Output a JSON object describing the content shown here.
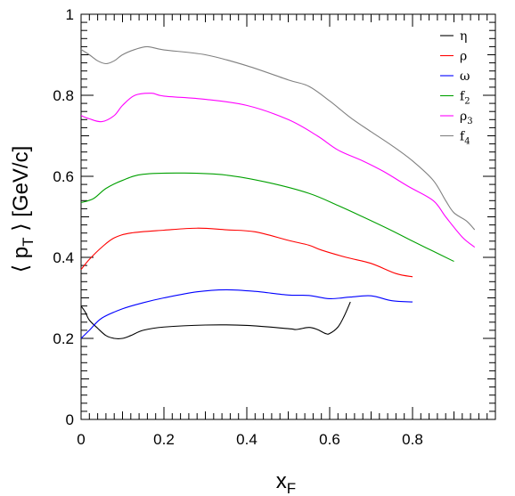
{
  "chart_data": {
    "type": "line",
    "title": "",
    "xlabel": {
      "main": "x",
      "sub": "F"
    },
    "ylabel": {
      "pre": "⟨ p",
      "sub": "T",
      "post": " ⟩ [GeV/c]"
    },
    "xlim": [
      0,
      1
    ],
    "ylim": [
      0,
      1
    ],
    "x_ticks": [
      0,
      0.2,
      0.4,
      0.6,
      0.8
    ],
    "x_tick_labels": [
      "0",
      "0.2",
      "0.4",
      "0.6",
      "0.8"
    ],
    "y_ticks": [
      0,
      0.2,
      0.4,
      0.6,
      0.8,
      1
    ],
    "y_tick_labels": [
      "0",
      "0.2",
      "0.4",
      "0.6",
      "0.8",
      "1"
    ],
    "grid": false,
    "legend_position": "top-right",
    "series": [
      {
        "name": "η",
        "name_sub": "",
        "color": "#000000",
        "points": [
          [
            0,
            0.28
          ],
          [
            0.01,
            0.265
          ],
          [
            0.02,
            0.245
          ],
          [
            0.04,
            0.225
          ],
          [
            0.06,
            0.207
          ],
          [
            0.08,
            0.2
          ],
          [
            0.1,
            0.2
          ],
          [
            0.12,
            0.207
          ],
          [
            0.15,
            0.22
          ],
          [
            0.2,
            0.228
          ],
          [
            0.3,
            0.233
          ],
          [
            0.4,
            0.232
          ],
          [
            0.5,
            0.224
          ],
          [
            0.52,
            0.222
          ],
          [
            0.55,
            0.227
          ],
          [
            0.57,
            0.222
          ],
          [
            0.59,
            0.212
          ],
          [
            0.6,
            0.212
          ],
          [
            0.62,
            0.228
          ],
          [
            0.635,
            0.255
          ],
          [
            0.65,
            0.29
          ]
        ]
      },
      {
        "name": "ρ",
        "name_sub": "",
        "color": "#ff0000",
        "points": [
          [
            0,
            0.37
          ],
          [
            0.02,
            0.395
          ],
          [
            0.05,
            0.425
          ],
          [
            0.08,
            0.448
          ],
          [
            0.12,
            0.46
          ],
          [
            0.2,
            0.467
          ],
          [
            0.28,
            0.472
          ],
          [
            0.35,
            0.468
          ],
          [
            0.42,
            0.463
          ],
          [
            0.5,
            0.442
          ],
          [
            0.55,
            0.43
          ],
          [
            0.58,
            0.418
          ],
          [
            0.64,
            0.4
          ],
          [
            0.7,
            0.385
          ],
          [
            0.76,
            0.36
          ],
          [
            0.8,
            0.352
          ]
        ]
      },
      {
        "name": "ω",
        "name_sub": "",
        "color": "#0000ff",
        "points": [
          [
            0,
            0.2
          ],
          [
            0.02,
            0.22
          ],
          [
            0.05,
            0.25
          ],
          [
            0.1,
            0.273
          ],
          [
            0.15,
            0.288
          ],
          [
            0.2,
            0.3
          ],
          [
            0.28,
            0.315
          ],
          [
            0.35,
            0.32
          ],
          [
            0.42,
            0.316
          ],
          [
            0.5,
            0.307
          ],
          [
            0.55,
            0.306
          ],
          [
            0.6,
            0.298
          ],
          [
            0.65,
            0.302
          ],
          [
            0.7,
            0.305
          ],
          [
            0.75,
            0.293
          ],
          [
            0.8,
            0.29
          ]
        ]
      },
      {
        "name": "f",
        "name_sub": "2",
        "color": "#00a000",
        "points": [
          [
            0,
            0.535
          ],
          [
            0.03,
            0.545
          ],
          [
            0.06,
            0.57
          ],
          [
            0.1,
            0.59
          ],
          [
            0.15,
            0.605
          ],
          [
            0.25,
            0.608
          ],
          [
            0.35,
            0.603
          ],
          [
            0.45,
            0.585
          ],
          [
            0.55,
            0.558
          ],
          [
            0.62,
            0.528
          ],
          [
            0.68,
            0.5
          ],
          [
            0.75,
            0.466
          ],
          [
            0.8,
            0.44
          ],
          [
            0.85,
            0.415
          ],
          [
            0.9,
            0.39
          ]
        ]
      },
      {
        "name": "ρ",
        "name_sub": "3",
        "color": "#ff00ff",
        "points": [
          [
            0,
            0.75
          ],
          [
            0.02,
            0.742
          ],
          [
            0.05,
            0.735
          ],
          [
            0.08,
            0.75
          ],
          [
            0.1,
            0.775
          ],
          [
            0.13,
            0.8
          ],
          [
            0.17,
            0.805
          ],
          [
            0.2,
            0.798
          ],
          [
            0.3,
            0.79
          ],
          [
            0.4,
            0.775
          ],
          [
            0.5,
            0.74
          ],
          [
            0.57,
            0.7
          ],
          [
            0.62,
            0.665
          ],
          [
            0.68,
            0.638
          ],
          [
            0.73,
            0.612
          ],
          [
            0.79,
            0.575
          ],
          [
            0.85,
            0.54
          ],
          [
            0.88,
            0.5
          ],
          [
            0.92,
            0.45
          ],
          [
            0.95,
            0.425
          ]
        ]
      },
      {
        "name": "f",
        "name_sub": "4",
        "color": "#808080",
        "points": [
          [
            0,
            0.913
          ],
          [
            0.02,
            0.9
          ],
          [
            0.04,
            0.885
          ],
          [
            0.06,
            0.878
          ],
          [
            0.08,
            0.885
          ],
          [
            0.1,
            0.9
          ],
          [
            0.13,
            0.913
          ],
          [
            0.16,
            0.92
          ],
          [
            0.2,
            0.912
          ],
          [
            0.3,
            0.9
          ],
          [
            0.4,
            0.873
          ],
          [
            0.5,
            0.838
          ],
          [
            0.55,
            0.822
          ],
          [
            0.6,
            0.786
          ],
          [
            0.65,
            0.745
          ],
          [
            0.7,
            0.71
          ],
          [
            0.75,
            0.676
          ],
          [
            0.8,
            0.638
          ],
          [
            0.85,
            0.59
          ],
          [
            0.88,
            0.54
          ],
          [
            0.9,
            0.51
          ],
          [
            0.93,
            0.49
          ],
          [
            0.95,
            0.468
          ]
        ]
      }
    ]
  }
}
